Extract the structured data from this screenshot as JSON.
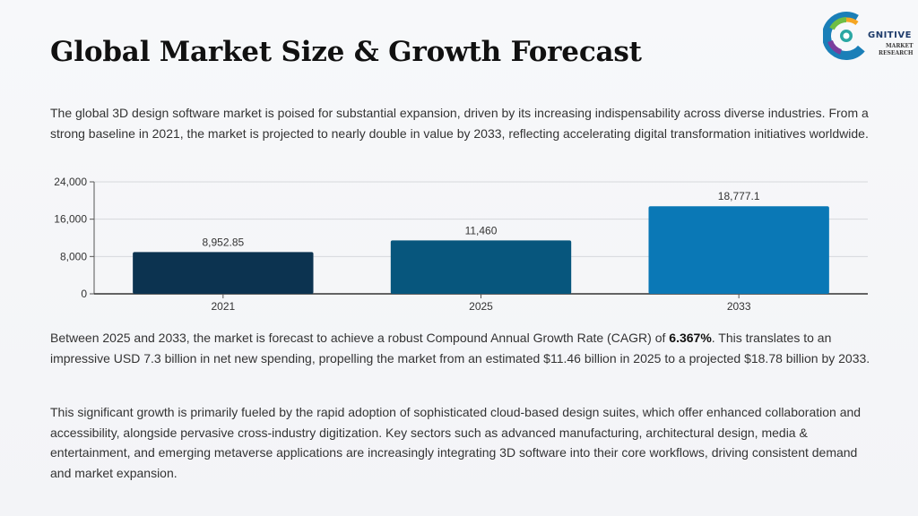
{
  "title": "Global Market Size & Growth Forecast",
  "logo": {
    "word": "GNITIVE",
    "sub1": "MARKET",
    "sub2": "RESEARCH",
    "colors": [
      "#1a7fb8",
      "#2aa7a3",
      "#6fbe45",
      "#f5a623",
      "#7a3e9d",
      "#1f3c6b"
    ]
  },
  "intro_text": "The global 3D design software market is poised for substantial expansion, driven by its increasing indispensability across diverse industries. From a strong baseline in 2021, the market is projected to nearly double in value by 2033, reflecting accelerating digital transformation initiatives worldwide.",
  "growth_text": {
    "before": "Between 2025 and 2033, the market is forecast to achieve a robust Compound Annual Growth Rate (CAGR) of ",
    "cagr": "6.367%",
    "after": ". This translates to an impressive USD 7.3 billion in net new spending, propelling the market from an estimated $11.46 billion in 2025 to a projected $18.78 billion by 2033."
  },
  "drivers_text": "This significant growth is primarily fueled by the rapid adoption of sophisticated cloud-based design suites, which offer enhanced collaboration and accessibility, alongside pervasive cross-industry digitization. Key sectors such as advanced manufacturing, architectural design, media & entertainment, and emerging metaverse applications are increasingly integrating 3D software into their core workflows, driving consistent demand and market expansion.",
  "chart_data": {
    "type": "bar",
    "categories": [
      "2021",
      "2025",
      "2033"
    ],
    "values": [
      8952.85,
      11460,
      18777.1
    ],
    "value_labels": [
      "8,952.85",
      "11,460",
      "18,777.1"
    ],
    "bar_colors": [
      "#0c3350",
      "#07567d",
      "#0a78b6"
    ],
    "ylim": [
      0,
      24000
    ],
    "yticks": [
      0,
      8000,
      16000,
      24000
    ],
    "ytick_labels": [
      "0",
      "8,000",
      "16,000",
      "24,000"
    ],
    "grid": true,
    "xlabel": "",
    "ylabel": ""
  }
}
